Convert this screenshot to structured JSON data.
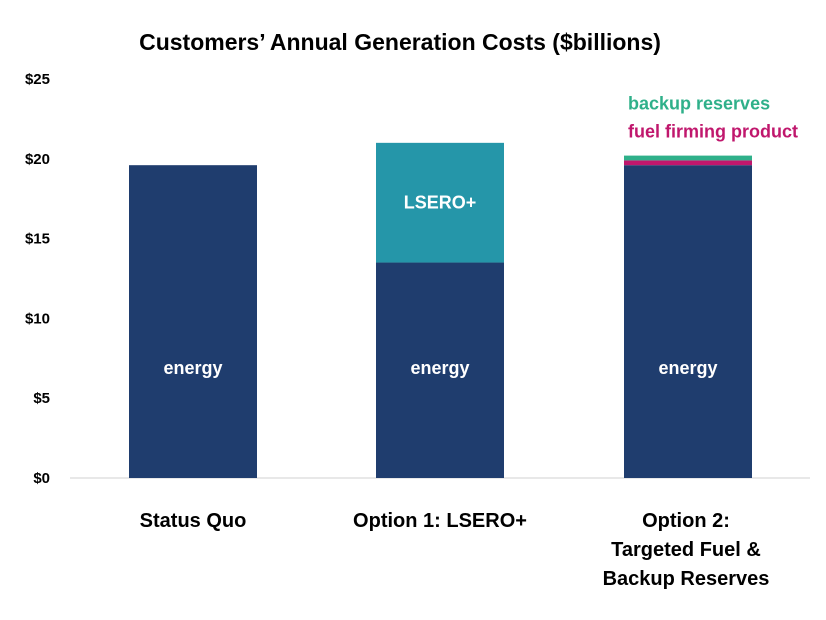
{
  "chart_data": {
    "type": "bar",
    "stacked": true,
    "title": "Customers’ Annual Generation Costs ($billions)",
    "xlabel": "",
    "ylabel": "",
    "ylim": [
      0,
      25
    ],
    "yticks": [
      0,
      5,
      10,
      15,
      20,
      25
    ],
    "ytick_labels": [
      "$0",
      "$5",
      "$10",
      "$15",
      "$20",
      "$25"
    ],
    "categories": [
      [
        "Status Quo"
      ],
      [
        "Option 1: LSERO+"
      ],
      [
        "Option 2:",
        "Targeted Fuel &",
        "Backup Reserves"
      ]
    ],
    "series": [
      {
        "name": "energy",
        "color": "#1f3d6e",
        "values": [
          19.6,
          13.5,
          19.6
        ],
        "labels": [
          "energy",
          "energy",
          "energy"
        ]
      },
      {
        "name": "LSERO+",
        "color": "#2596a9",
        "values": [
          0,
          7.5,
          0
        ],
        "labels": [
          "",
          "LSERO+",
          ""
        ]
      },
      {
        "name": "fuel firming product",
        "color": "#c0176d",
        "values": [
          0,
          0,
          0.3
        ],
        "labels": [
          "",
          "",
          ""
        ]
      },
      {
        "name": "backup reserves",
        "color": "#2fb08a",
        "values": [
          0,
          0,
          0.3
        ],
        "labels": [
          "",
          "",
          ""
        ]
      }
    ],
    "annotations": [
      {
        "text": "backup reserves",
        "color": "#2fb08a",
        "category_index": 2
      },
      {
        "text": "fuel firming product",
        "color": "#c0176d",
        "category_index": 2
      }
    ],
    "grid": false,
    "legend": "none"
  }
}
